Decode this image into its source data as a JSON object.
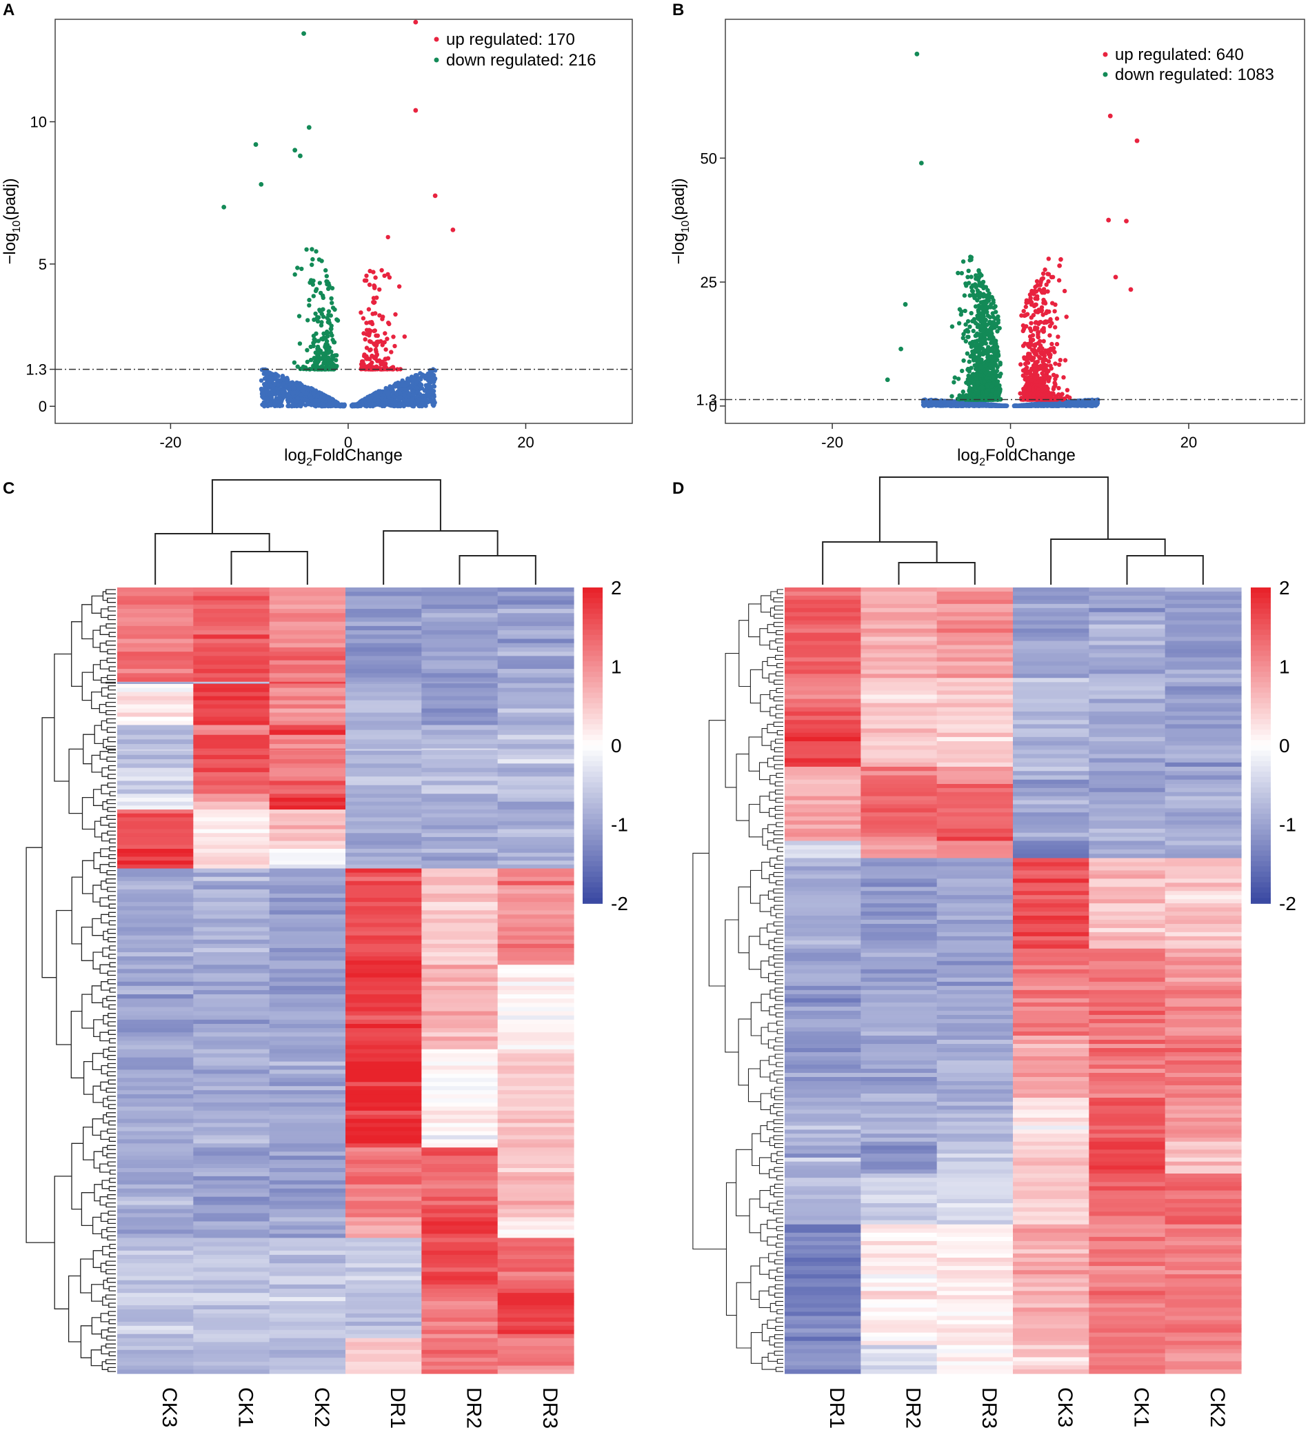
{
  "panel_labels": [
    "A",
    "B",
    "C",
    "D"
  ],
  "colors": {
    "up": "#e8233f",
    "down": "#138a57",
    "ns": "#3d6ebd",
    "high": "#e8232b",
    "mid": "#ffffff",
    "low": "#3b4aa3"
  },
  "chart_data": [
    {
      "panel": "A",
      "type": "scatter",
      "xlabel": "log2FoldChange",
      "xlabel_main": "log",
      "xlabel_sub": "2",
      "xlabel_rest": "FoldChange",
      "ylabel": "-log10(padj)",
      "ylabel_main": "−log",
      "ylabel_sub": "10",
      "ylabel_rest": "(padj)",
      "xlim": [
        -33,
        32
      ],
      "ylim": [
        -0.6,
        13.6
      ],
      "xticks": [
        -20,
        0,
        20
      ],
      "xtick_labels": [
        "-20",
        "0",
        "20"
      ],
      "yticks": [
        0,
        1.3,
        5,
        10
      ],
      "ytick_labels": [
        "0",
        "1.3",
        "5",
        "10"
      ],
      "threshold": 1.3,
      "legend": [
        "up regulated: 170",
        "down regulated: 216"
      ],
      "outliers_up": [
        [
          7.6,
          13.5
        ],
        [
          7.6,
          10.4
        ],
        [
          9.8,
          7.4
        ],
        [
          11.8,
          6.2
        ]
      ],
      "outliers_down": [
        [
          -5,
          13.1
        ],
        [
          -10.4,
          9.2
        ],
        [
          -4.4,
          9.8
        ],
        [
          -14,
          7.0
        ],
        [
          -9.8,
          7.8
        ],
        [
          -6,
          9.0
        ],
        [
          -5.4,
          8.8
        ]
      ],
      "n_up": 170,
      "n_down": 216
    },
    {
      "panel": "B",
      "type": "scatter",
      "xlabel": "log2FoldChange",
      "xlabel_main": "log",
      "xlabel_sub": "2",
      "xlabel_rest": "FoldChange",
      "ylabel": "-log10(padj)",
      "ylabel_main": "−log",
      "ylabel_sub": "10",
      "ylabel_rest": "(padj)",
      "xlim": [
        -32,
        33
      ],
      "ylim": [
        -3.5,
        78
      ],
      "xticks": [
        -20,
        0,
        20
      ],
      "xtick_labels": [
        "-20",
        "0",
        "20"
      ],
      "yticks": [
        0,
        1.3,
        25,
        50
      ],
      "ytick_labels": [
        "0",
        "1.3",
        "25",
        "50"
      ],
      "threshold": 1.3,
      "legend": [
        "up regulated: 640",
        "down regulated: 1083"
      ],
      "outliers_up": [
        [
          11.2,
          58.5
        ],
        [
          14.2,
          53.5
        ],
        [
          11,
          37.5
        ],
        [
          13,
          37.3
        ],
        [
          11.8,
          26
        ],
        [
          13.5,
          23.5
        ],
        [
          5.5,
          28.3
        ]
      ],
      "outliers_down": [
        [
          -10.5,
          71
        ],
        [
          -10,
          49
        ],
        [
          -11.8,
          20.5
        ],
        [
          -13.8,
          5.3
        ],
        [
          -12.3,
          11.5
        ]
      ],
      "n_up": 640,
      "n_down": 1083
    },
    {
      "panel": "C",
      "type": "heatmap",
      "columns": [
        "CK3",
        "CK1",
        "CK2",
        "DR1",
        "DR2",
        "DR3"
      ],
      "color_range": [
        -2,
        2
      ],
      "colorbar_ticks": [
        "2",
        "1",
        "0",
        "-1",
        "-2"
      ],
      "blocks": [
        {
          "rows": 0.61,
          "values": [
            1.2,
            1.5,
            1.0,
            -1.1,
            -1.1,
            -1.0
          ]
        },
        {
          "rows": 0.35,
          "values": [
            1.3,
            1.7,
            1.3,
            -1.2,
            -1.1,
            -1.0
          ]
        },
        {
          "rows": 0.02,
          "values": [
            -1.0,
            -0.6,
            1.5,
            -1.0,
            -1.0,
            -1.0
          ]
        },
        {
          "rows": 0.42,
          "values": [
            0.3,
            1.8,
            1.0,
            -0.8,
            -1.2,
            -0.9
          ]
        },
        {
          "rows": 0.1,
          "values": [
            -0.8,
            0.9,
            1.6,
            -0.8,
            -0.8,
            -0.8
          ]
        },
        {
          "rows": 0.14,
          "values": [
            -0.8,
            1.8,
            1.1,
            -0.8,
            -0.8,
            -0.8
          ]
        },
        {
          "rows": 0.02,
          "values": [
            -0.6,
            1.8,
            1.2,
            -0.6,
            -0.6,
            -0.6
          ]
        },
        {
          "rows": 0.44,
          "values": [
            -0.6,
            1.5,
            1.3,
            -0.7,
            -0.7,
            -0.7
          ]
        },
        {
          "rows": 0.16,
          "values": [
            -0.2,
            0.8,
            2.0,
            -0.9,
            -1.0,
            -0.9
          ]
        },
        {
          "rows": 0.4,
          "values": [
            1.5,
            0.2,
            0.6,
            -0.9,
            -1.0,
            -0.9
          ]
        },
        {
          "rows": 0.2,
          "values": [
            1.8,
            0.4,
            -0.1,
            -0.9,
            -1.0,
            -0.9
          ]
        },
        {
          "rows": 0.98,
          "values": [
            -1.0,
            -0.9,
            -1.1,
            1.6,
            0.5,
            1.1
          ]
        },
        {
          "rows": 0.86,
          "values": [
            -1.0,
            -1.0,
            -1.0,
            1.8,
            0.7,
            0.1
          ]
        },
        {
          "rows": 1.0,
          "values": [
            -0.9,
            -0.9,
            -1.0,
            1.9,
            0.1,
            0.5
          ]
        },
        {
          "rows": 0.71,
          "values": [
            -1.0,
            -1.0,
            -1.0,
            1.2,
            1.4,
            0.6
          ]
        },
        {
          "rows": 0.21,
          "values": [
            -0.9,
            -1.0,
            -1.0,
            0.7,
            1.8,
            0.1
          ]
        },
        {
          "rows": 0.56,
          "values": [
            -0.6,
            -0.6,
            -0.6,
            -0.6,
            1.6,
            1.4
          ]
        },
        {
          "rows": 0.46,
          "values": [
            -0.6,
            -0.6,
            -0.6,
            -0.6,
            1.1,
            1.8
          ]
        },
        {
          "rows": 0.36,
          "values": [
            -0.8,
            -0.8,
            -0.8,
            0.5,
            1.3,
            1.2
          ]
        }
      ],
      "dendro_left": 0.8
    },
    {
      "panel": "D",
      "type": "heatmap",
      "columns": [
        "DR1",
        "DR2",
        "DR3",
        "CK3",
        "CK1",
        "CK2"
      ],
      "color_range": [
        -2,
        2
      ],
      "colorbar_ticks": [
        "2",
        "1",
        "0",
        "-1",
        "-2"
      ],
      "blocks": [
        {
          "rows": 1.05,
          "values": [
            1.5,
            0.7,
            1.0,
            -1.0,
            -0.9,
            -1.1
          ]
        },
        {
          "rows": 0.34,
          "values": [
            1.2,
            0.4,
            0.5,
            -0.7,
            -0.7,
            -1.1
          ]
        },
        {
          "rows": 0.69,
          "values": [
            1.7,
            0.5,
            0.4,
            -0.8,
            -0.9,
            -1.0
          ]
        },
        {
          "rows": 0.2,
          "values": [
            0.7,
            1.3,
            1.0,
            -0.9,
            -1.0,
            -0.9
          ]
        },
        {
          "rows": 0.66,
          "values": [
            0.8,
            1.4,
            1.5,
            -1.0,
            -0.9,
            -1.0
          ]
        },
        {
          "rows": 0.2,
          "values": [
            -0.4,
            0.9,
            1.0,
            -1.4,
            -0.8,
            -0.8
          ]
        },
        {
          "rows": 1.05,
          "values": [
            -0.9,
            -1.1,
            -1.0,
            1.6,
            0.6,
            0.5
          ]
        },
        {
          "rows": 1.01,
          "values": [
            -1.0,
            -0.9,
            -1.0,
            1.2,
            1.2,
            1.0
          ]
        },
        {
          "rows": 0.72,
          "values": [
            -1.1,
            -1.0,
            -0.9,
            0.8,
            1.2,
            1.2
          ]
        },
        {
          "rows": 0.51,
          "values": [
            -0.9,
            -0.8,
            -0.8,
            0.2,
            1.6,
            1.0
          ]
        },
        {
          "rows": 0.37,
          "values": [
            -0.8,
            -1.2,
            -0.6,
            0.5,
            1.8,
            0.5
          ]
        },
        {
          "rows": 0.59,
          "values": [
            -0.8,
            -0.6,
            -0.5,
            0.4,
            1.4,
            1.3
          ]
        },
        {
          "rows": 1.4,
          "values": [
            -1.4,
            0.1,
            0.2,
            0.7,
            1.2,
            1.2
          ]
        },
        {
          "rows": 0.33,
          "values": [
            -1.2,
            -0.4,
            0.1,
            0.4,
            1.3,
            1.0
          ]
        }
      ],
      "dendro_left": 0.8
    }
  ]
}
